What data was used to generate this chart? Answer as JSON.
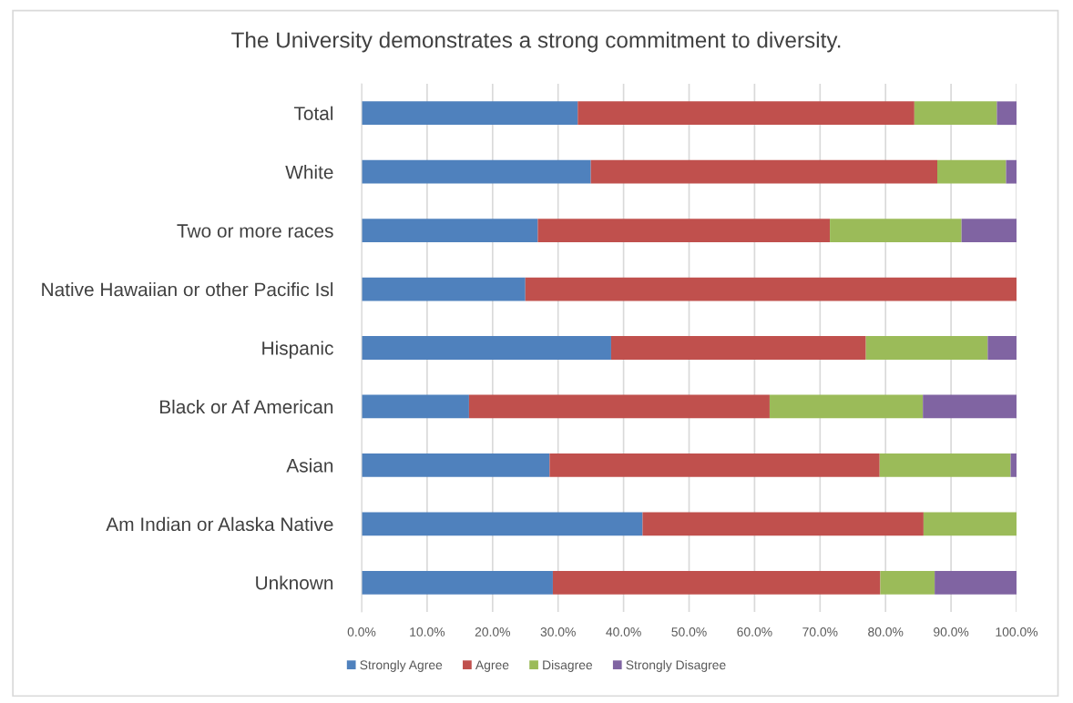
{
  "chart_data": {
    "type": "bar",
    "orientation": "horizontal",
    "stacked": true,
    "title": "The University demonstrates a strong commitment to diversity.",
    "categories": [
      "Total",
      "White",
      "Two or more races",
      "Native Hawaiian or other Pacific Isl",
      "Hispanic",
      "Black or Af American",
      "Asian",
      "Am Indian or Alaska Native",
      "Unknown"
    ],
    "series": [
      {
        "name": "Strongly Agree",
        "color": "#4f81bd",
        "values": [
          33.0,
          35.0,
          26.9,
          25.0,
          38.1,
          16.4,
          28.7,
          42.9,
          29.2
        ]
      },
      {
        "name": "Agree",
        "color": "#c0504d",
        "values": [
          51.4,
          52.9,
          44.6,
          75.0,
          38.9,
          45.9,
          50.4,
          42.9,
          50.0
        ]
      },
      {
        "name": "Disagree",
        "color": "#9bbb59",
        "values": [
          12.6,
          10.5,
          20.1,
          0,
          18.6,
          23.4,
          20.0,
          14.2,
          8.3
        ]
      },
      {
        "name": "Strongly Disagree",
        "color": "#8064a2",
        "values": [
          3.0,
          1.6,
          8.4,
          0,
          4.4,
          14.3,
          0.9,
          0,
          12.5
        ]
      }
    ],
    "xlim": [
      0,
      100
    ],
    "xticks": [
      {
        "value": 0,
        "label": "0.0%"
      },
      {
        "value": 10,
        "label": "10.0%"
      },
      {
        "value": 20,
        "label": "20.0%"
      },
      {
        "value": 30,
        "label": "30.0%"
      },
      {
        "value": 40,
        "label": "40.0%"
      },
      {
        "value": 50,
        "label": "50.0%"
      },
      {
        "value": 60,
        "label": "60.0%"
      },
      {
        "value": 70,
        "label": "70.0%"
      },
      {
        "value": 80,
        "label": "80.0%"
      },
      {
        "value": 90,
        "label": "90.0%"
      },
      {
        "value": 100,
        "label": "100.0%"
      }
    ],
    "grid": "x",
    "legend": "bottom"
  }
}
